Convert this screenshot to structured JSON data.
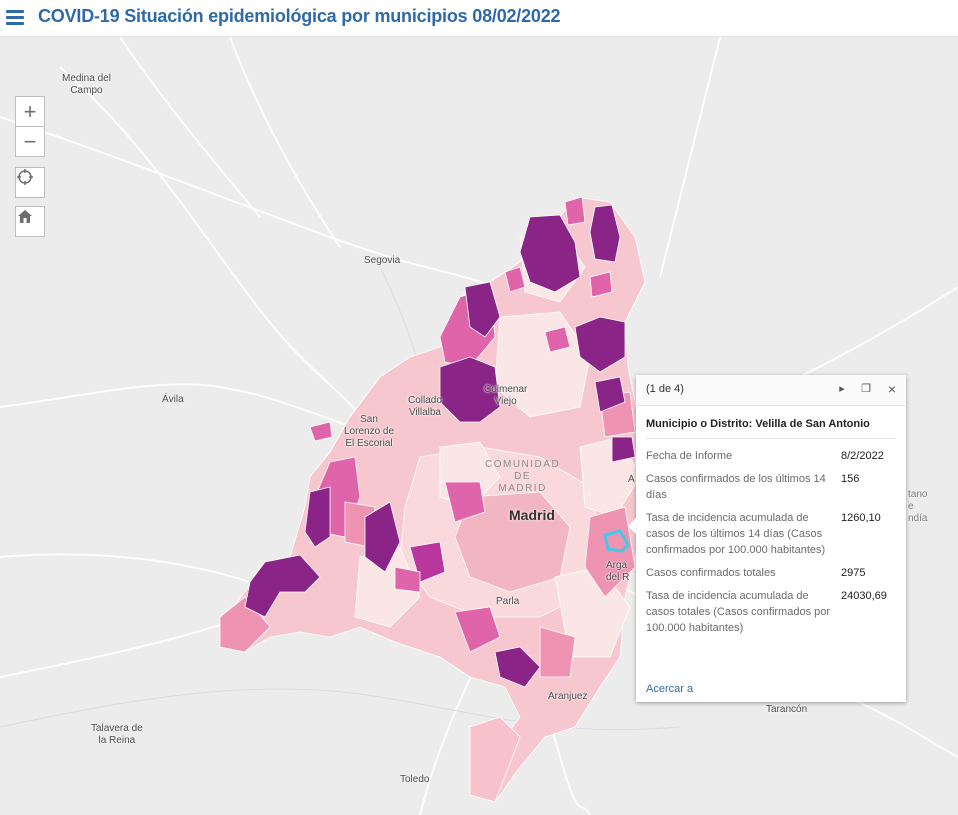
{
  "header": {
    "title": "COVID-19 Situación epidemiológica por municipios 08/02/2022"
  },
  "map_controls": {
    "zoom_in": "+",
    "zoom_out": "−"
  },
  "places": {
    "medina": "Medina del\nCampo",
    "segovia": "Segovia",
    "avila": "Ávila",
    "collado": "Collado\nVillalba",
    "colmenar": "Colmenar\nViejo",
    "sanlorenzo": "San\nLorenzo de\nEl Escorial",
    "madrid": "Madrid",
    "parla": "Parla",
    "aranjuez": "Aranjuez",
    "talavera": "Talavera de\nla Reina",
    "toledo": "Toledo",
    "tarancon": "Tarancón",
    "arganda": "Arga\ndel R",
    "region": "COMUNIDAD\nDE\nMADRID",
    "right_edge": "tano\ne\nndía",
    "right_a": "A"
  },
  "popup": {
    "page": "(1 de 4)",
    "next_icon": "▸",
    "dock_icon": "❐",
    "close_icon": "×",
    "title": "Municipio o Distrito: Velilla de San Antonio",
    "fields": [
      {
        "name": "Fecha de Informe",
        "value": "8/2/2022"
      },
      {
        "name": "Casos confirmados de los últimos 14 días",
        "value": "156"
      },
      {
        "name": "Tasa de incidencia acumulada de casos de los últimos 14 días (Casos confirmados por 100.000 habitantes)",
        "value": "1260,10"
      },
      {
        "name": "Casos confirmados totales",
        "value": "2975"
      },
      {
        "name": "Tasa de incidencia acumulada de casos totales (Casos confirmados por 100.000 habitantes)",
        "value": "24030,69"
      }
    ],
    "zoom_link": "Acercar a"
  },
  "colors": {
    "accent": "#2f6aa7",
    "choropleth": [
      "#fbe6e6",
      "#f7c2cc",
      "#ef93b3",
      "#e064a9",
      "#b9379c",
      "#8a2487"
    ],
    "highlight": "#49c6e5"
  }
}
